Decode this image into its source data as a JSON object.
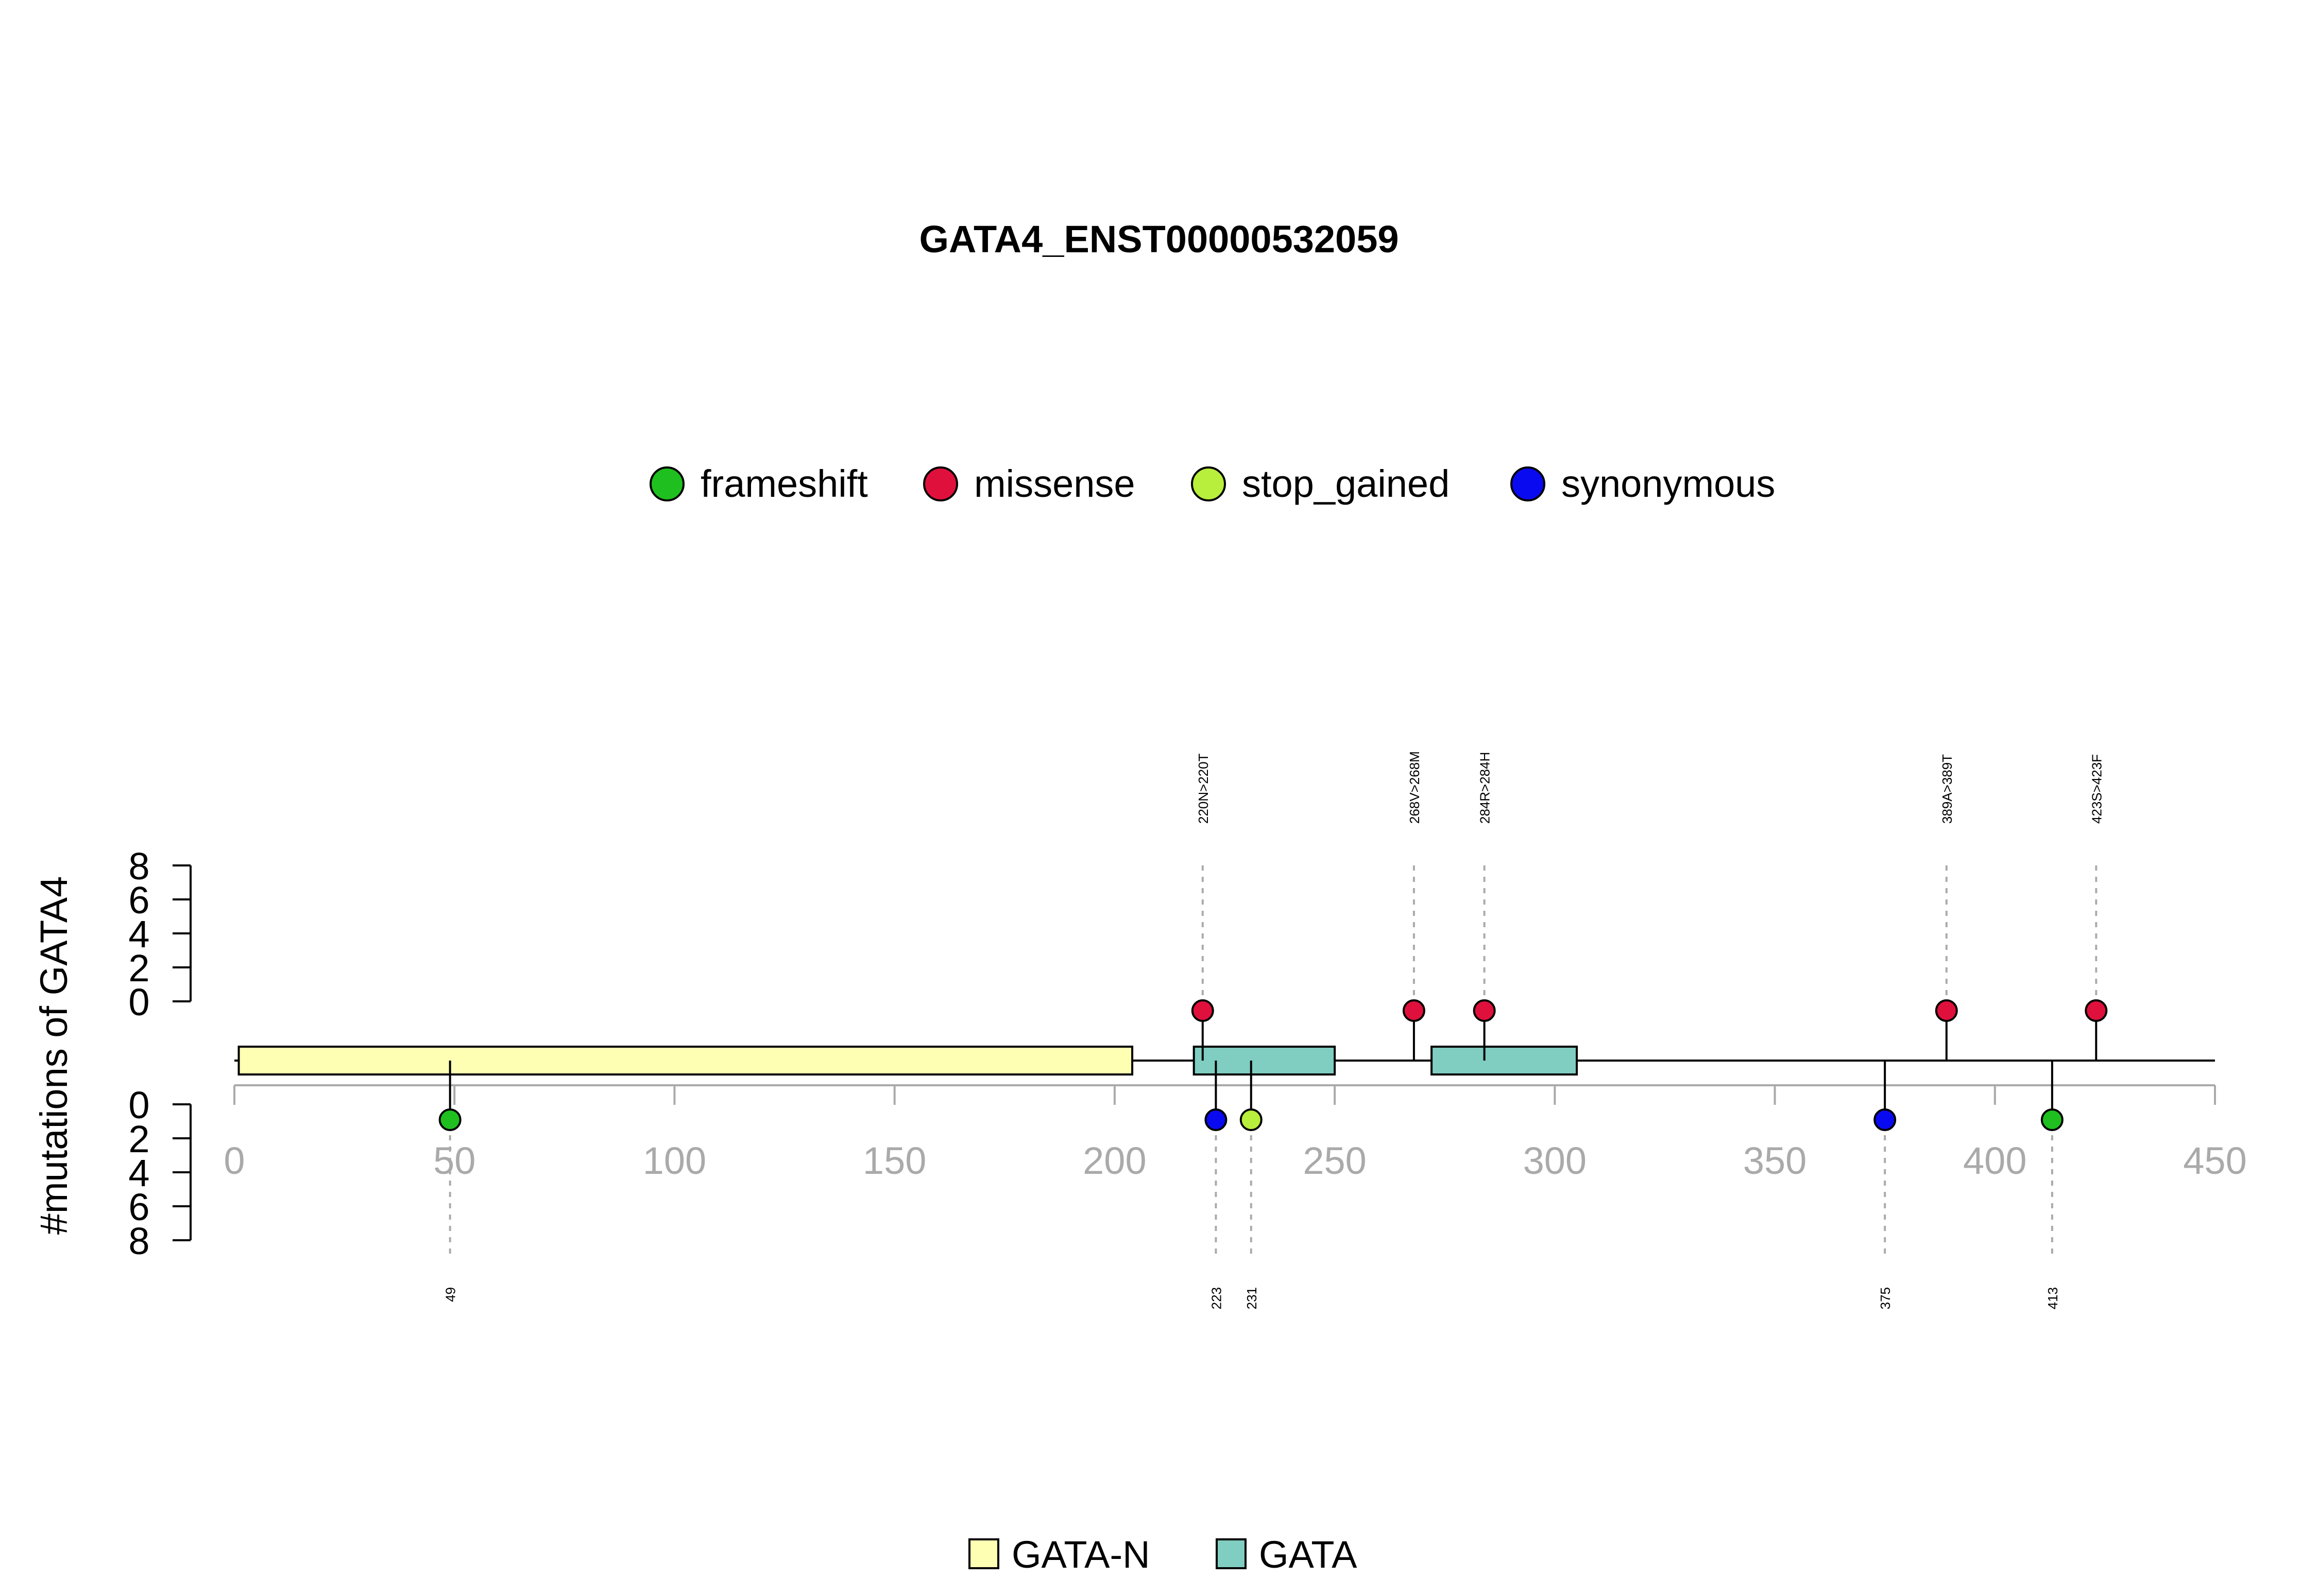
{
  "chart_data": {
    "type": "lollipop",
    "title": "GATA4_ENST00000532059",
    "ylabel": "#mutations of GATA4",
    "xlim": [
      0,
      450
    ],
    "x_ticks": [
      0,
      50,
      100,
      150,
      200,
      250,
      300,
      350,
      400,
      450
    ],
    "y_ticks_top": [
      0,
      2,
      4,
      6,
      8
    ],
    "y_ticks_bottom": [
      0,
      2,
      4,
      6,
      8
    ],
    "mutation_legend": [
      {
        "name": "frameshift",
        "color": "#1fbf1f"
      },
      {
        "name": "missense",
        "color": "#e0103c"
      },
      {
        "name": "stop_gained",
        "color": "#b8ee3c"
      },
      {
        "name": "synonymous",
        "color": "#0a0af0"
      }
    ],
    "domain_legend": [
      {
        "name": "GATA-N",
        "color": "#ffffb3"
      },
      {
        "name": "GATA",
        "color": "#80cdc1"
      }
    ],
    "domains": [
      {
        "name": "GATA-N",
        "start": 1,
        "end": 204
      },
      {
        "name": "GATA",
        "start": 218,
        "end": 250
      },
      {
        "name": "GATA",
        "start": 272,
        "end": 305
      }
    ],
    "mutations_top": [
      {
        "position": 220,
        "label": "220N>220T",
        "type": "missense",
        "count": 1
      },
      {
        "position": 268,
        "label": "268V>268M",
        "type": "missense",
        "count": 1
      },
      {
        "position": 284,
        "label": "284R>284H",
        "type": "missense",
        "count": 1
      },
      {
        "position": 389,
        "label": "389A>389T",
        "type": "missense",
        "count": 1
      },
      {
        "position": 423,
        "label": "423S>423F",
        "type": "missense",
        "count": 1
      }
    ],
    "mutations_bottom": [
      {
        "position": 49,
        "label": "49",
        "type": "frameshift",
        "count": 1
      },
      {
        "position": 223,
        "label": "223",
        "type": "synonymous",
        "count": 1
      },
      {
        "position": 231,
        "label": "231",
        "type": "stop_gained",
        "count": 1
      },
      {
        "position": 375,
        "label": "375",
        "type": "synonymous",
        "count": 1
      },
      {
        "position": 413,
        "label": "413",
        "type": "frameshift",
        "count": 1
      }
    ]
  }
}
